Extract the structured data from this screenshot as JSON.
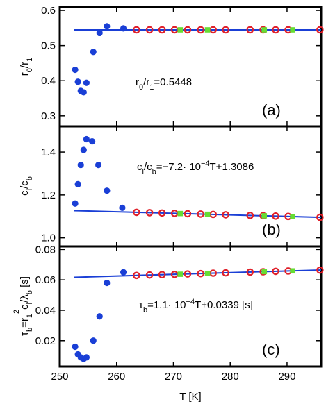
{
  "colors": {
    "fit_line": "#1a3fd6",
    "blue_points": "#1a3fd6",
    "red_circles": "#e0202a",
    "green_squares": "#66dd33",
    "frame": "#000000"
  },
  "chart_data": [
    {
      "type": "scatter",
      "panel": "(a)",
      "ylabel": "r_0/r_1",
      "annotation": "r_0/r_1=0.5448",
      "xlim": [
        250,
        296
      ],
      "ylim": [
        0.27,
        0.61
      ],
      "yticks": [
        0.3,
        0.4,
        0.5,
        0.6
      ],
      "yticklabels": [
        "0.3",
        "0.4",
        "0.5",
        "0.6"
      ],
      "fit": {
        "x": [
          252.5,
          296
        ],
        "y": [
          0.5448,
          0.5448
        ]
      },
      "series": [
        {
          "marker": "blue-dot",
          "x": [
            252.7,
            253.2,
            253.7,
            254.2,
            254.7,
            255.9,
            257.0,
            258.3,
            261.2
          ],
          "y": [
            0.431,
            0.397,
            0.371,
            0.367,
            0.394,
            0.482,
            0.536,
            0.555,
            0.549
          ]
        },
        {
          "marker": "red-circle",
          "x": [
            263.5,
            265.8,
            268.0,
            270.2,
            272.5,
            274.8,
            277.0,
            279.2,
            283.5,
            285.8,
            288.0,
            290.2,
            295.8
          ],
          "y": [
            0.5448,
            0.5448,
            0.5448,
            0.5448,
            0.5448,
            0.5448,
            0.5448,
            0.5448,
            0.5448,
            0.5448,
            0.5448,
            0.5448,
            0.5448
          ]
        },
        {
          "marker": "green-square",
          "x": [
            271.2,
            276.0,
            286.0,
            291.0
          ],
          "y": [
            0.5448,
            0.5448,
            0.5448,
            0.5448
          ]
        }
      ]
    },
    {
      "type": "scatter",
      "panel": "(b)",
      "ylabel": "c_l/c_b",
      "annotation": "c_l/c_b=−7.2· 10^-4T+1.3086",
      "xlim": [
        250,
        296
      ],
      "ylim": [
        0.96,
        1.52
      ],
      "yticks": [
        1.0,
        1.2,
        1.4
      ],
      "yticklabels": [
        "1.0",
        "1.2",
        "1.4"
      ],
      "fit": {
        "x": [
          252.5,
          296
        ],
        "y": [
          1.1268,
          1.0955
        ]
      },
      "series": [
        {
          "marker": "blue-dot",
          "x": [
            252.7,
            253.2,
            253.7,
            254.2,
            254.7,
            255.7,
            256.8,
            258.3,
            261.0
          ],
          "y": [
            1.16,
            1.25,
            1.34,
            1.41,
            1.46,
            1.45,
            1.34,
            1.22,
            1.14
          ]
        },
        {
          "marker": "red-circle",
          "x": [
            263.5,
            265.8,
            268.0,
            270.2,
            272.5,
            274.8,
            277.0,
            279.2,
            283.5,
            285.8,
            288.0,
            290.2,
            295.8
          ],
          "y": [
            1.1189,
            1.1173,
            1.1157,
            1.1141,
            1.1125,
            1.1108,
            1.1092,
            1.1076,
            1.1045,
            1.1029,
            1.1013,
            1.0997,
            1.0956
          ]
        },
        {
          "marker": "green-square",
          "x": [
            271.2,
            276.0,
            286.0,
            291.0
          ],
          "y": [
            1.1133,
            1.1099,
            1.1027,
            1.0991
          ]
        }
      ]
    },
    {
      "type": "scatter",
      "panel": "(c)",
      "ylabel": "τ_b=r_1^2c_l/λ_b [s]",
      "annotation": "τ_b=1.1· 10^-4T+0.0339 [s]",
      "xlabel": "T [K]",
      "xlim": [
        250,
        296
      ],
      "ylim": [
        0.003,
        0.082
      ],
      "xticks": [
        250,
        260,
        270,
        280,
        290
      ],
      "xticklabels": [
        "250",
        "260",
        "270",
        "280",
        "290"
      ],
      "yticks": [
        0.02,
        0.04,
        0.06,
        0.08
      ],
      "yticklabels": [
        "0.02",
        "0.04",
        "0.06",
        "0.08"
      ],
      "fit": {
        "x": [
          252.5,
          296
        ],
        "y": [
          0.0617,
          0.0665
        ]
      },
      "series": [
        {
          "marker": "blue-dot",
          "x": [
            252.7,
            253.2,
            253.7,
            254.2,
            254.7,
            255.9,
            257.0,
            258.3,
            261.2
          ],
          "y": [
            0.016,
            0.011,
            0.009,
            0.008,
            0.009,
            0.02,
            0.036,
            0.058,
            0.065
          ]
        },
        {
          "marker": "red-circle",
          "x": [
            263.5,
            265.8,
            268.0,
            270.2,
            272.5,
            274.8,
            277.0,
            279.2,
            283.5,
            285.8,
            288.0,
            290.2,
            295.8
          ],
          "y": [
            0.0629,
            0.0632,
            0.0634,
            0.0636,
            0.0639,
            0.0641,
            0.0644,
            0.0646,
            0.0651,
            0.0653,
            0.0656,
            0.0658,
            0.0664
          ]
        },
        {
          "marker": "green-square",
          "x": [
            271.2,
            276.0,
            286.0,
            291.0
          ],
          "y": [
            0.0637,
            0.0643,
            0.0654,
            0.0659
          ]
        }
      ]
    }
  ]
}
